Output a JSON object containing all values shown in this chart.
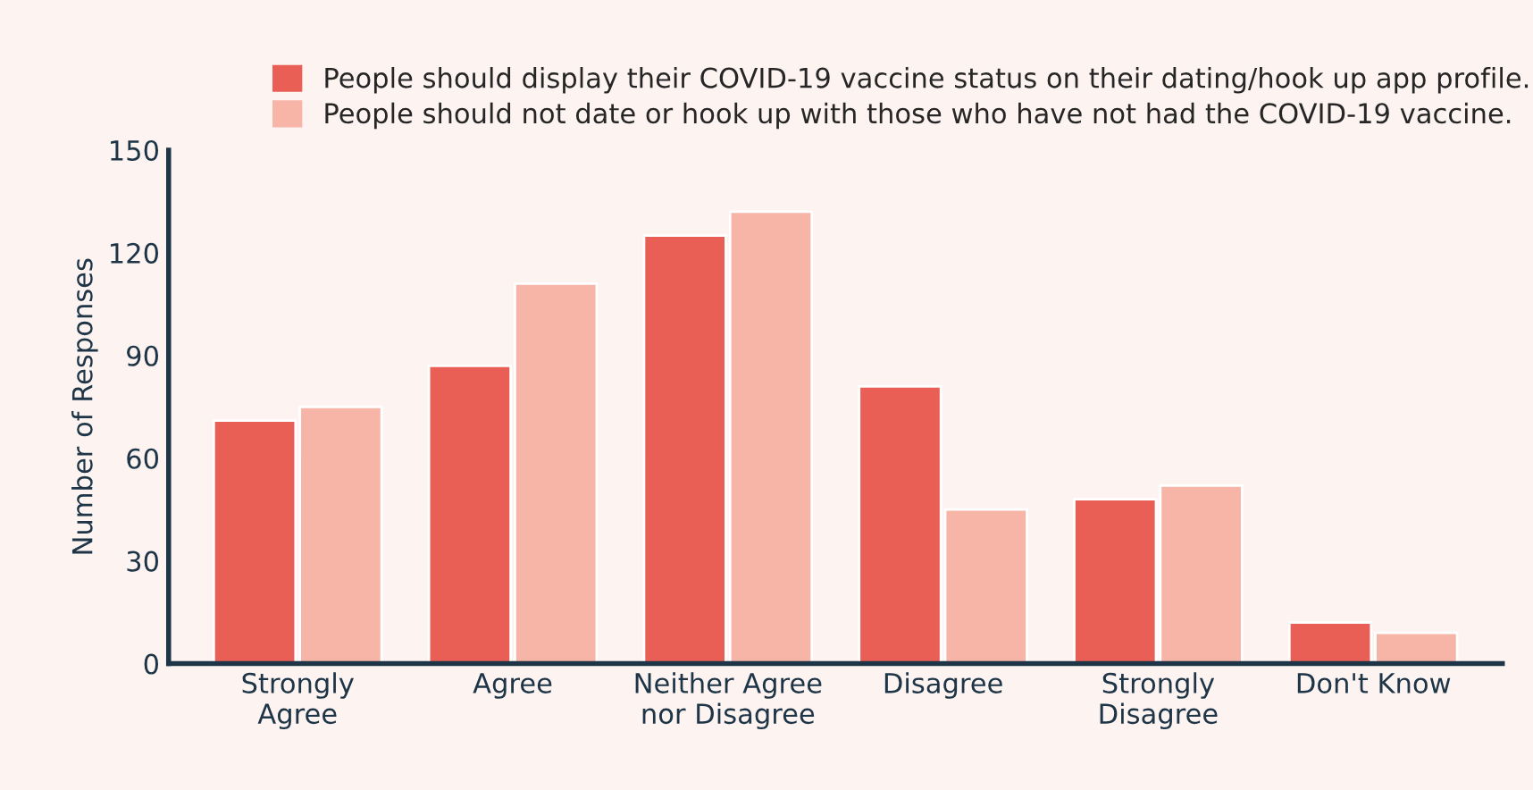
{
  "chart_data": {
    "type": "bar",
    "ylabel": "Number of Responses",
    "categories": [
      "Strongly\nAgree",
      "Agree",
      "Neither Agree\nnor Disagree",
      "Disagree",
      "Strongly\nDisagree",
      "Don't Know"
    ],
    "series": [
      {
        "name": "People should display their COVID-19 vaccine status on their dating/hook up app profile.",
        "color": "#e95f55",
        "values": [
          71,
          87,
          125,
          81,
          48,
          12
        ]
      },
      {
        "name": "People should not date or hook up with those who have not had the COVID-19 vaccine.",
        "color": "#f7b5a8",
        "values": [
          75,
          111,
          132,
          45,
          52,
          9
        ]
      }
    ],
    "ylim": [
      0,
      150
    ],
    "yticks": [
      0,
      30,
      60,
      90,
      120,
      150
    ],
    "grid": false,
    "legend": "top"
  }
}
